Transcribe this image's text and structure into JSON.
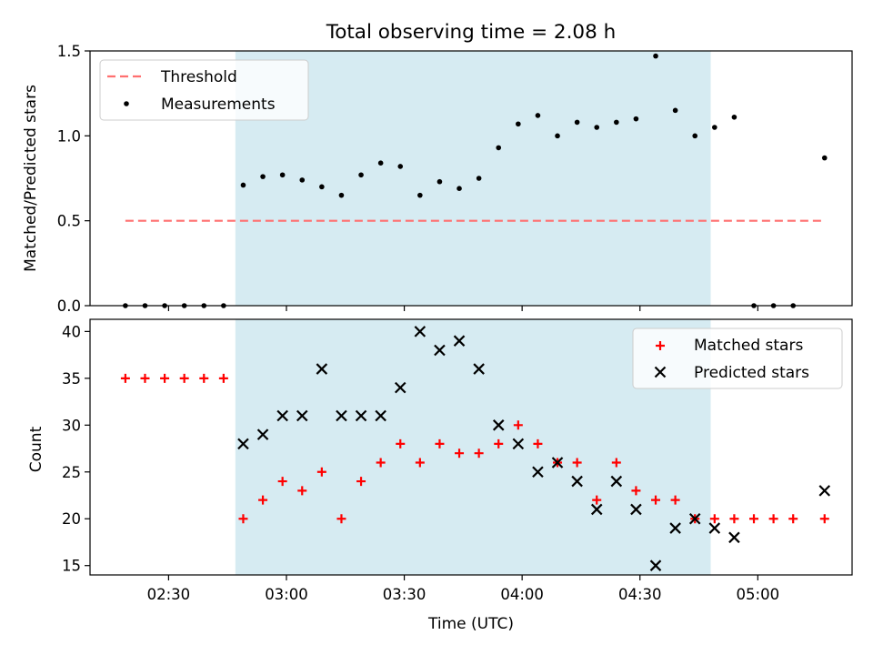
{
  "title": "Total observing time = 2.08 h",
  "xlabel": "Time (UTC)",
  "colors": {
    "threshold": "#ff7070",
    "measurement": "#000000",
    "matched": "#ff0000",
    "predicted": "#000000",
    "shade": "#add8e6"
  },
  "chart_data": [
    {
      "type": "scatter",
      "ylabel": "Matched/Predicted stars",
      "ylim": [
        0,
        1.5
      ],
      "yticks": [
        "0.0",
        "0.5",
        "1.0",
        "1.5"
      ],
      "xlim": [
        "02:10",
        "05:24"
      ],
      "x_tick_times": [
        "02:30",
        "03:00",
        "03:30",
        "04:00",
        "04:30",
        "05:00"
      ],
      "shaded_span": [
        "02:47",
        "04:48"
      ],
      "legend": {
        "position": "upper left",
        "entries": [
          "Threshold",
          "Measurements"
        ]
      },
      "threshold": {
        "name": "Threshold",
        "y": 0.5,
        "x_range": [
          "02:19",
          "05:17"
        ]
      },
      "series": [
        {
          "name": "Measurements",
          "points": [
            [
              "02:19",
              0.0
            ],
            [
              "02:24",
              0.0
            ],
            [
              "02:29",
              0.0
            ],
            [
              "02:34",
              0.0
            ],
            [
              "02:39",
              0.0
            ],
            [
              "02:44",
              0.0
            ],
            [
              "02:49",
              0.71
            ],
            [
              "02:54",
              0.76
            ],
            [
              "02:59",
              0.77
            ],
            [
              "03:04",
              0.74
            ],
            [
              "03:09",
              0.7
            ],
            [
              "03:14",
              0.65
            ],
            [
              "03:19",
              0.77
            ],
            [
              "03:24",
              0.84
            ],
            [
              "03:29",
              0.82
            ],
            [
              "03:34",
              0.65
            ],
            [
              "03:39",
              0.73
            ],
            [
              "03:44",
              0.69
            ],
            [
              "03:49",
              0.75
            ],
            [
              "03:54",
              0.93
            ],
            [
              "03:59",
              1.07
            ],
            [
              "04:04",
              1.12
            ],
            [
              "04:09",
              1.0
            ],
            [
              "04:14",
              1.08
            ],
            [
              "04:19",
              1.05
            ],
            [
              "04:24",
              1.08
            ],
            [
              "04:29",
              1.1
            ],
            [
              "04:34",
              1.47
            ],
            [
              "04:39",
              1.15
            ],
            [
              "04:44",
              1.0
            ],
            [
              "04:49",
              1.05
            ],
            [
              "04:54",
              1.11
            ],
            [
              "04:59",
              0.0
            ],
            [
              "05:04",
              0.0
            ],
            [
              "05:09",
              0.0
            ],
            [
              "05:17",
              0.87
            ]
          ]
        }
      ]
    },
    {
      "type": "scatter",
      "ylabel": "Count",
      "ylim": [
        14,
        41.3
      ],
      "yticks": [
        "15",
        "20",
        "25",
        "30",
        "35",
        "40"
      ],
      "xlim": [
        "02:10",
        "05:24"
      ],
      "x_ticks": [
        "02:30",
        "03:00",
        "03:30",
        "04:00",
        "04:30",
        "05:00"
      ],
      "shaded_span": [
        "02:47",
        "04:48"
      ],
      "legend": {
        "position": "upper right",
        "entries": [
          "Matched stars",
          "Predicted stars"
        ]
      },
      "series": [
        {
          "name": "Matched stars",
          "marker": "+",
          "points": [
            [
              "02:19",
              35
            ],
            [
              "02:24",
              35
            ],
            [
              "02:29",
              35
            ],
            [
              "02:34",
              35
            ],
            [
              "02:39",
              35
            ],
            [
              "02:44",
              35
            ],
            [
              "02:49",
              20
            ],
            [
              "02:54",
              22
            ],
            [
              "02:59",
              24
            ],
            [
              "03:04",
              23
            ],
            [
              "03:09",
              25
            ],
            [
              "03:14",
              20
            ],
            [
              "03:19",
              24
            ],
            [
              "03:24",
              26
            ],
            [
              "03:29",
              28
            ],
            [
              "03:34",
              26
            ],
            [
              "03:39",
              28
            ],
            [
              "03:44",
              27
            ],
            [
              "03:49",
              27
            ],
            [
              "03:54",
              28
            ],
            [
              "03:59",
              30
            ],
            [
              "04:04",
              28
            ],
            [
              "04:09",
              26
            ],
            [
              "04:14",
              26
            ],
            [
              "04:19",
              22
            ],
            [
              "04:24",
              26
            ],
            [
              "04:29",
              23
            ],
            [
              "04:34",
              22
            ],
            [
              "04:39",
              22
            ],
            [
              "04:44",
              20
            ],
            [
              "04:49",
              20
            ],
            [
              "04:54",
              20
            ],
            [
              "04:59",
              20
            ],
            [
              "05:04",
              20
            ],
            [
              "05:09",
              20
            ],
            [
              "05:17",
              20
            ]
          ]
        },
        {
          "name": "Predicted stars",
          "marker": "x",
          "points": [
            [
              "02:49",
              28
            ],
            [
              "02:54",
              29
            ],
            [
              "02:59",
              31
            ],
            [
              "03:04",
              31
            ],
            [
              "03:09",
              36
            ],
            [
              "03:14",
              31
            ],
            [
              "03:19",
              31
            ],
            [
              "03:24",
              31
            ],
            [
              "03:29",
              34
            ],
            [
              "03:34",
              40
            ],
            [
              "03:39",
              38
            ],
            [
              "03:44",
              39
            ],
            [
              "03:49",
              36
            ],
            [
              "03:54",
              30
            ],
            [
              "03:59",
              28
            ],
            [
              "04:04",
              25
            ],
            [
              "04:09",
              26
            ],
            [
              "04:14",
              24
            ],
            [
              "04:19",
              21
            ],
            [
              "04:24",
              24
            ],
            [
              "04:29",
              21
            ],
            [
              "04:34",
              15
            ],
            [
              "04:39",
              19
            ],
            [
              "04:44",
              20
            ],
            [
              "04:49",
              19
            ],
            [
              "04:54",
              18
            ],
            [
              "05:17",
              23
            ]
          ]
        }
      ]
    }
  ]
}
